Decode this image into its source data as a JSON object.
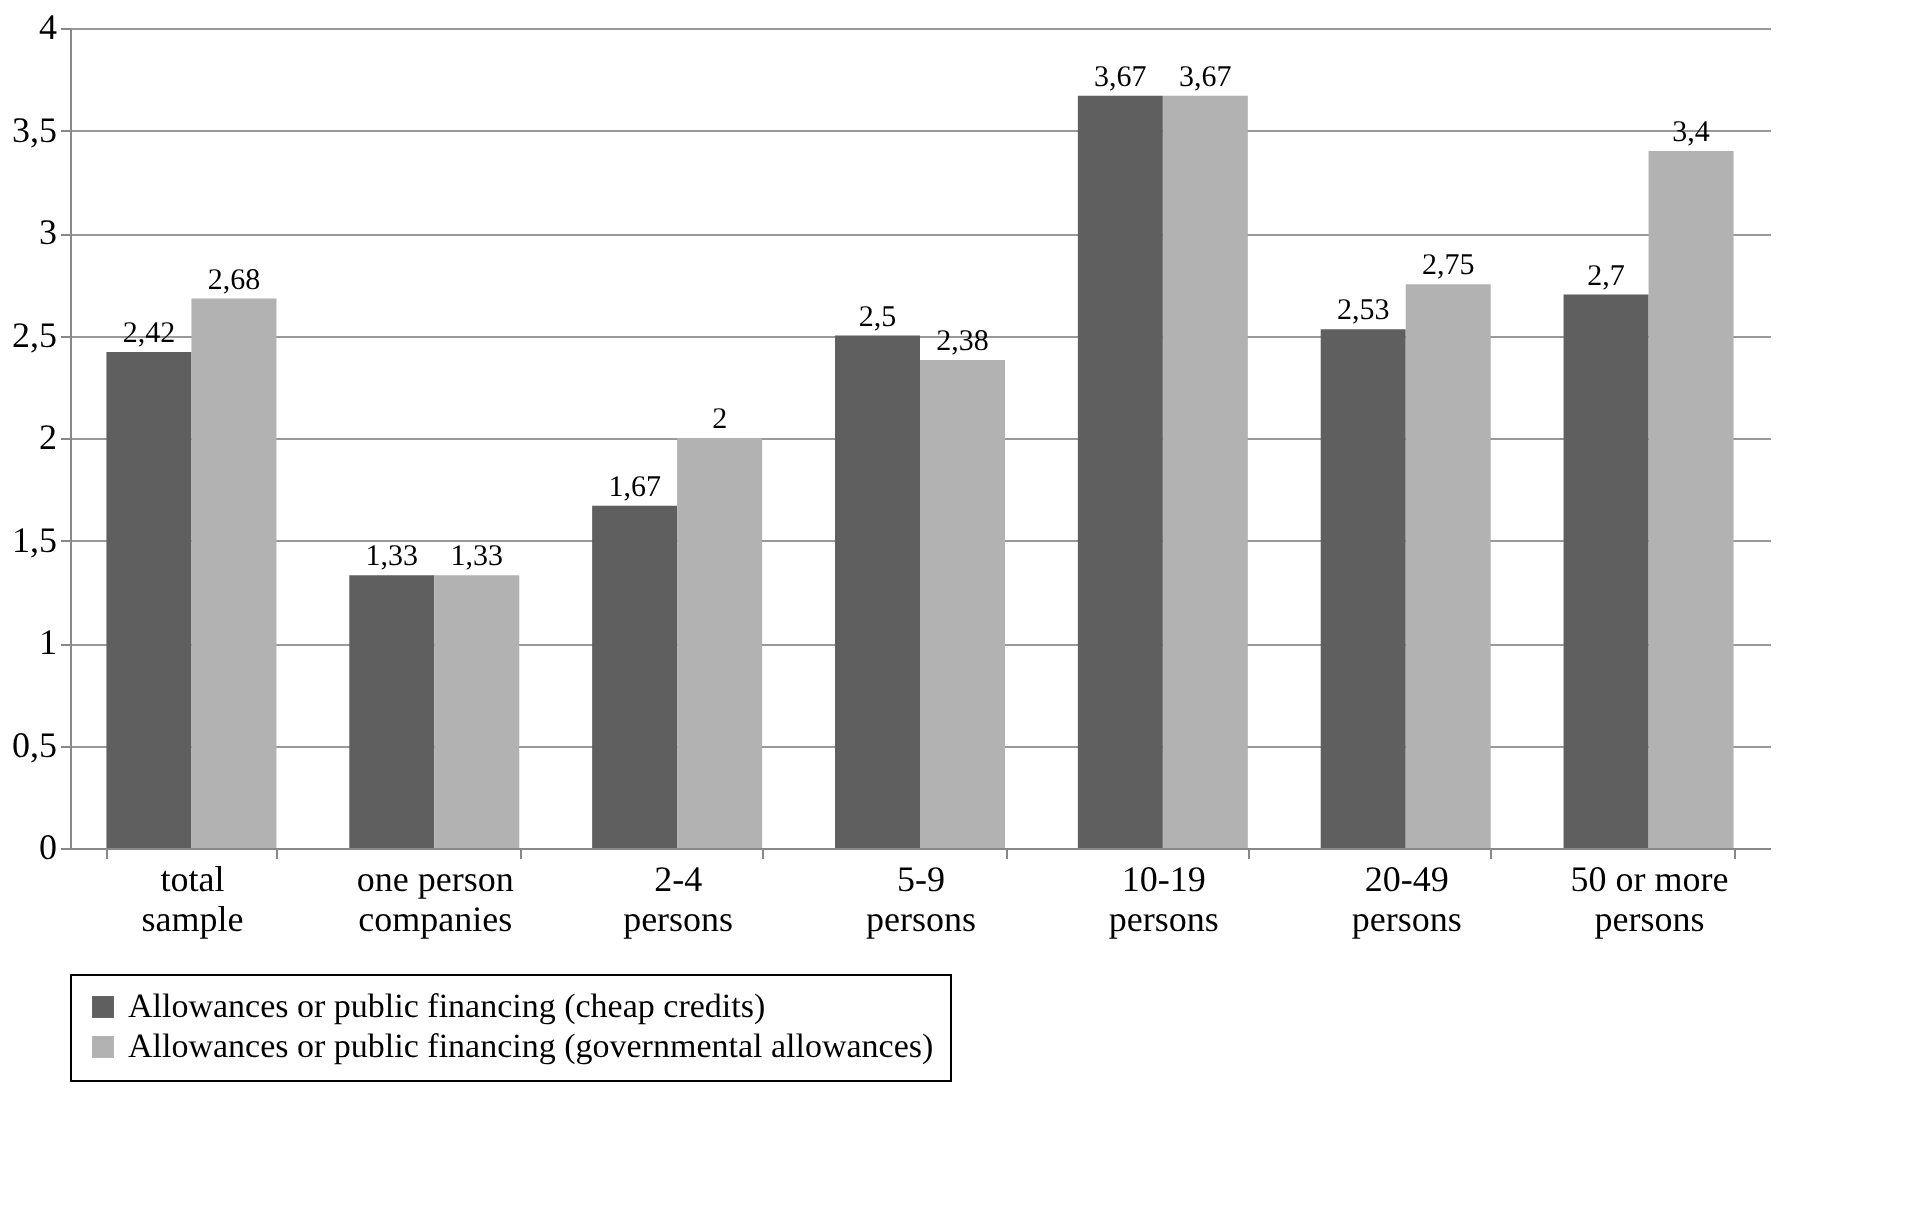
{
  "chart_data": {
    "type": "bar",
    "categories": [
      "total\nsample",
      "one person\ncompanies",
      "2-4\npersons",
      "5-9\npersons",
      "10-19\npersons",
      "20-49\npersons",
      "50 or more\npersons"
    ],
    "series": [
      {
        "name": "Allowances or public financing (cheap credits)",
        "color": "#5f5f5f",
        "values": [
          2.42,
          1.33,
          1.67,
          2.5,
          3.67,
          2.53,
          2.7
        ],
        "value_labels": [
          "2,42",
          "1,33",
          "1,67",
          "2,5",
          "3,67",
          "2,53",
          "2,7"
        ]
      },
      {
        "name": "Allowances or public financing (governmental allowances)",
        "color": "#b2b2b2",
        "values": [
          2.68,
          1.33,
          2,
          2.38,
          3.67,
          2.75,
          3.4
        ],
        "value_labels": [
          "2,68",
          "1,33",
          "2",
          "2,38",
          "3,67",
          "2,75",
          "3,4"
        ]
      }
    ],
    "ylim": [
      0,
      4
    ],
    "yticks": [
      0,
      {
        "value": 0.5,
        "label": "0,5"
      },
      1,
      {
        "value": 1.5,
        "label": "1,5"
      },
      2,
      {
        "value": 2.5,
        "label": "2,5"
      },
      3,
      {
        "value": 3.5,
        "label": "3,5"
      },
      4
    ],
    "grid": "y",
    "legend": "bottom"
  }
}
